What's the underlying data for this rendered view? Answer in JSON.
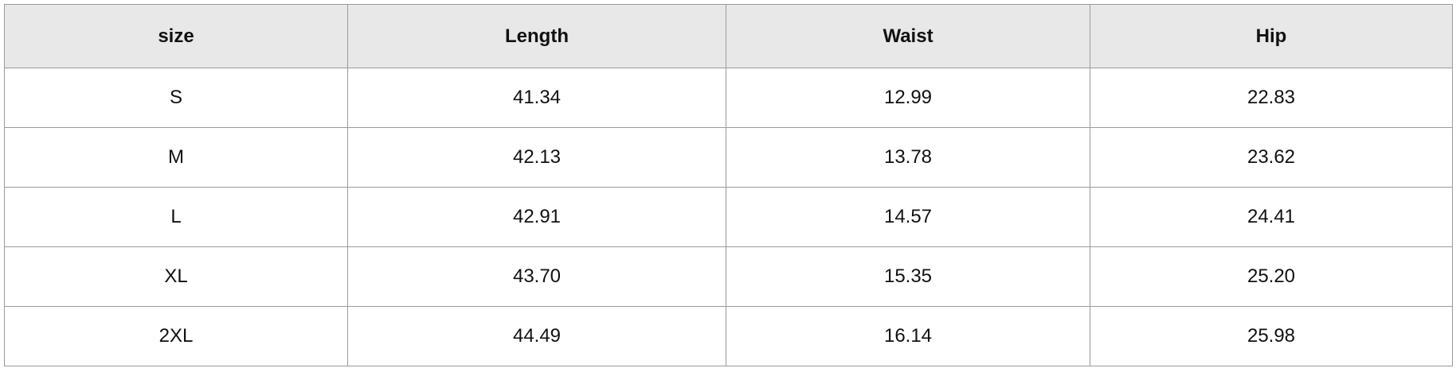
{
  "table": {
    "header": [
      "size",
      "Length",
      "Waist",
      "Hip"
    ],
    "rows": [
      [
        "S",
        "41.34",
        "12.99",
        "22.83"
      ],
      [
        "M",
        "42.13",
        "13.78",
        "23.62"
      ],
      [
        "L",
        "42.91",
        "14.57",
        "24.41"
      ],
      [
        "XL",
        "43.70",
        "15.35",
        "25.20"
      ],
      [
        "2XL",
        "44.49",
        "16.14",
        "25.98"
      ]
    ]
  }
}
